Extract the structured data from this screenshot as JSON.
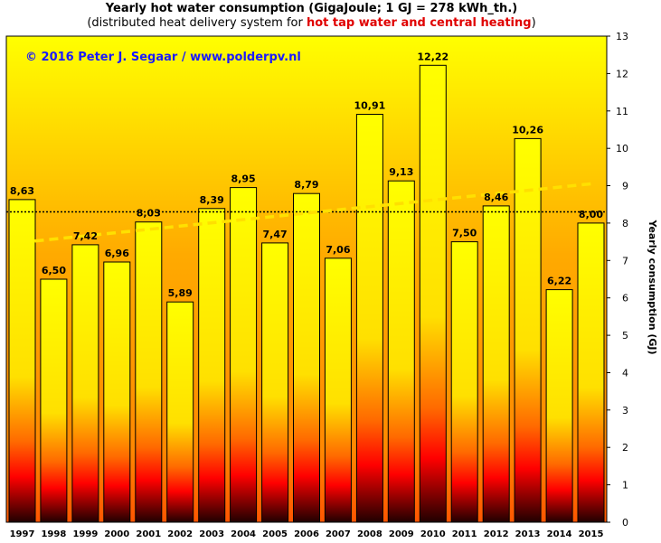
{
  "chart_data": {
    "type": "bar",
    "title": "Yearly hot water consumption  (GigaJoule;  1 GJ = 278 kWh_th.)",
    "subtitle_parts": {
      "before": "(distributed heat delivery system for ",
      "highlight": "hot tap water and central heating",
      "after": ")"
    },
    "copyright": "© 2016  Peter J. Segaar  /  www.polderpv.nl",
    "ylabel": "Yearly consumption (GJ)",
    "xlabel": "",
    "categories": [
      "1997",
      "1998",
      "1999",
      "2000",
      "2001",
      "2002",
      "2003",
      "2004",
      "2005",
      "2006",
      "2007",
      "2008",
      "2009",
      "2010",
      "2011",
      "2012",
      "2013",
      "2014",
      "2015"
    ],
    "values": [
      8.63,
      6.5,
      7.42,
      6.96,
      8.03,
      5.89,
      8.39,
      8.95,
      7.47,
      8.79,
      7.06,
      10.91,
      9.13,
      12.22,
      7.5,
      8.46,
      10.26,
      6.22,
      8.0
    ],
    "value_labels": [
      "8,63",
      "6,50",
      "7,42",
      "6,96",
      "8,03",
      "5,89",
      "8,39",
      "8,95",
      "7,47",
      "8,79",
      "7,06",
      "10,91",
      "9,13",
      "12,22",
      "7,50",
      "8,46",
      "10,26",
      "6,22",
      "8,00"
    ],
    "ylim": [
      0,
      13
    ],
    "yticks": [
      "0",
      "1",
      "2",
      "3",
      "4",
      "5",
      "6",
      "7",
      "8",
      "9",
      "10",
      "11",
      "12",
      "13"
    ],
    "average_line": 8.3,
    "trend_line": {
      "start": 7.52,
      "end": 9.05
    },
    "grid": false,
    "y_axis_side": "right",
    "colors": {
      "bar_top": "#ffff40",
      "bar_mid": "#ffff00",
      "bar_bottom": "#ff8c00",
      "bar_base": "#ff0000",
      "bg_top": "#ffff00",
      "bg_mid": "#ff9900",
      "bg_bottom": "#cc0000",
      "trend": "#ffe000",
      "average": "#000000",
      "copyright": "#0000cc",
      "highlight": "#e00000"
    }
  }
}
